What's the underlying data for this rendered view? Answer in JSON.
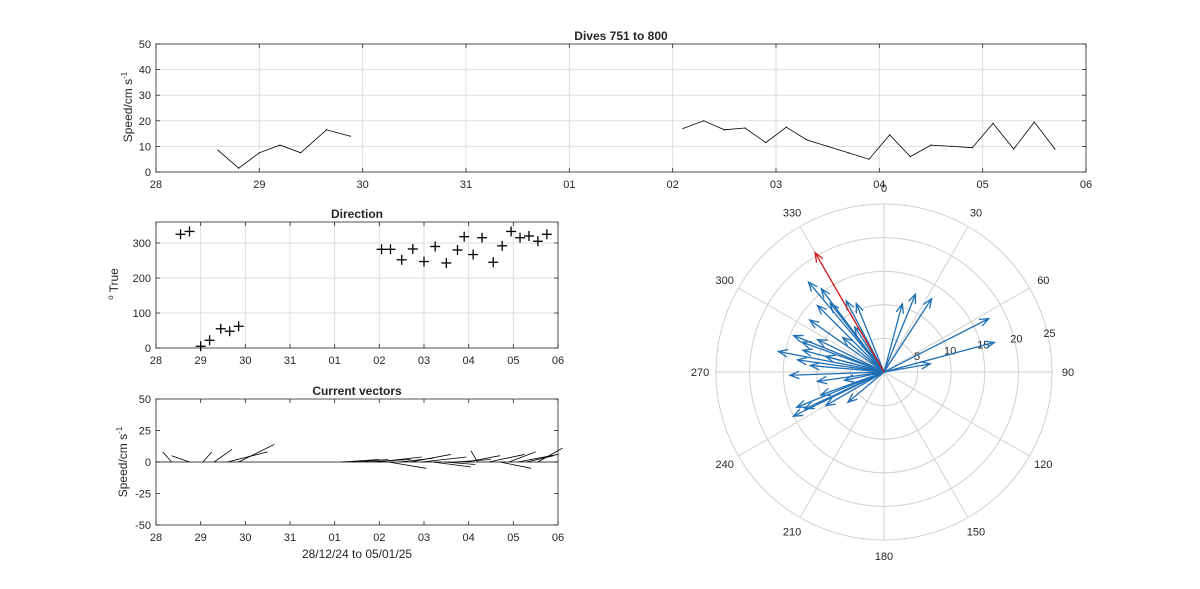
{
  "figure": {
    "colors": {
      "axis": "#262626",
      "grid": "#dfdfdf",
      "polar_grid": "#d0d0d0",
      "line": "#000000",
      "polar_vectors": "#1f6fb4",
      "polar_mean": "#d21a1a"
    }
  },
  "chart_data": [
    {
      "type": "line",
      "id": "speed",
      "title": "Dives 751 to 800",
      "xlabel": "",
      "ylabel": "Speed/cm s",
      "ylabel_exponent": "-1",
      "xlim": [
        0,
        9
      ],
      "ylim": [
        0,
        50
      ],
      "grid": true,
      "xtick_values": [
        0,
        1,
        2,
        3,
        4,
        5,
        6,
        7,
        8,
        9
      ],
      "xtick_labels": [
        "28",
        "29",
        "30",
        "31",
        "01",
        "02",
        "03",
        "04",
        "05",
        "06"
      ],
      "ytick_values": [
        0,
        10,
        20,
        30,
        40,
        50
      ],
      "ytick_labels": [
        "0",
        "10",
        "20",
        "30",
        "40",
        "50"
      ],
      "segments": [
        {
          "x": [
            0.6,
            0.8,
            1.0,
            1.2,
            1.4,
            1.65,
            1.88
          ],
          "y": [
            8.5,
            1.5,
            7.5,
            10.5,
            7.5,
            16.5,
            14
          ]
        },
        {
          "x": [
            5.1,
            5.3,
            5.5,
            5.7,
            5.9,
            6.1,
            6.3,
            6.5,
            6.7,
            6.9,
            7.1,
            7.3,
            7.5,
            7.7,
            7.9,
            8.1,
            8.3,
            8.5,
            8.7
          ],
          "y": [
            17,
            20,
            16.5,
            17.2,
            11.5,
            17.5,
            12.5,
            10,
            7.5,
            5,
            14.5,
            6,
            10.5,
            10,
            9.5,
            19,
            9,
            19.5,
            9
          ]
        }
      ]
    },
    {
      "type": "scatter",
      "id": "direction",
      "title": "Direction",
      "xlabel": "",
      "ylabel": "True",
      "ylabel_prefix": "o",
      "marker": "+",
      "xlim": [
        0,
        9
      ],
      "ylim": [
        0,
        360
      ],
      "grid": true,
      "xtick_values": [
        0,
        1,
        2,
        3,
        4,
        5,
        6,
        7,
        8,
        9
      ],
      "xtick_labels": [
        "28",
        "29",
        "30",
        "31",
        "01",
        "02",
        "03",
        "04",
        "05",
        "06"
      ],
      "ytick_values": [
        0,
        100,
        200,
        300
      ],
      "ytick_labels": [
        "0",
        "100",
        "200",
        "300"
      ],
      "x": [
        0.55,
        0.75,
        1.0,
        1.2,
        1.45,
        1.65,
        1.85,
        5.05,
        5.25,
        5.5,
        5.75,
        6.0,
        6.25,
        6.5,
        6.75,
        6.9,
        7.1,
        7.3,
        7.55,
        7.75,
        7.95,
        8.15,
        8.35,
        8.55,
        8.75
      ],
      "y": [
        325,
        333,
        5,
        22,
        55,
        48,
        62,
        282,
        282,
        252,
        283,
        247,
        290,
        243,
        280,
        318,
        267,
        315,
        245,
        292,
        333,
        315,
        320,
        305,
        325
      ]
    },
    {
      "type": "line",
      "id": "current_vectors",
      "subtype": "stick",
      "title": "Current vectors",
      "xlabel": "28/12/24 to 05/01/25",
      "ylabel": "Speed/cm s",
      "ylabel_exponent": "-1",
      "xlim": [
        0,
        9
      ],
      "ylim": [
        -50,
        50
      ],
      "grid": false,
      "xtick_values": [
        0,
        1,
        2,
        3,
        4,
        5,
        6,
        7,
        8,
        9
      ],
      "xtick_labels": [
        "28",
        "29",
        "30",
        "31",
        "01",
        "02",
        "03",
        "04",
        "05",
        "06"
      ],
      "ytick_values": [
        -50,
        -25,
        0,
        25,
        50
      ],
      "ytick_labels": [
        "-50",
        "-25",
        "0",
        "25",
        "50"
      ],
      "sticks": {
        "x": [
          0.35,
          0.75,
          1.05,
          1.3,
          1.6,
          1.85,
          4.15,
          4.4,
          4.7,
          4.95,
          5.2,
          5.45,
          5.7,
          5.95,
          6.2,
          6.45,
          6.7,
          6.95,
          7.2,
          7.45,
          7.7,
          7.9,
          8.1,
          8.3,
          8.55
        ],
        "u": [
          -0.2,
          -0.4,
          0.2,
          0.4,
          0.9,
          0.8,
          0.85,
          0.8,
          1.0,
          1.0,
          0.85,
          0.75,
          0.9,
          1.0,
          0.85,
          0.7,
          0.8,
          0.75,
          -0.15,
          0.8,
          0.7,
          0.6,
          0.9,
          0.6,
          0.55
        ],
        "v": [
          8,
          5,
          8,
          10,
          8,
          14,
          2,
          2,
          2,
          4,
          -5,
          3,
          6,
          4,
          -4,
          -2,
          2,
          5,
          9,
          6,
          -5,
          8,
          6,
          5,
          11
        ]
      }
    },
    {
      "type": "scatter",
      "id": "polar_rose",
      "subtype": "polar_vectors",
      "title": "",
      "rlim": [
        0,
        25
      ],
      "rtick_values": [
        5,
        10,
        15,
        20,
        25
      ],
      "rtick_labels": [
        "5",
        "10",
        "15",
        "20",
        "25"
      ],
      "angle_labels": [
        "0",
        "30",
        "60",
        "90",
        "120",
        "150",
        "180",
        "210",
        "240",
        "270",
        "300",
        "330"
      ],
      "angle_zero": "north",
      "angle_direction": "clockwise",
      "vectors": {
        "theta": [
          63,
          33,
          22,
          75,
          80,
          15,
          338,
          332,
          322,
          315,
          305,
          310,
          296,
          292,
          290,
          285,
          285,
          281,
          278,
          275,
          268,
          262,
          258,
          250,
          248,
          244,
          240,
          245,
          230,
          320,
          323,
          327
        ],
        "r": [
          17.5,
          13,
          12.5,
          17,
          7,
          10.5,
          11,
          12,
          13,
          14,
          13.5,
          8,
          11,
          14.5,
          13,
          9,
          12.5,
          16,
          13,
          11,
          14,
          10,
          6,
          10,
          14,
          15,
          10,
          13,
          7,
          17.5,
          15.5,
          8
        ],
        "mean_theta": 330,
        "mean_r": 20.5
      }
    }
  ]
}
